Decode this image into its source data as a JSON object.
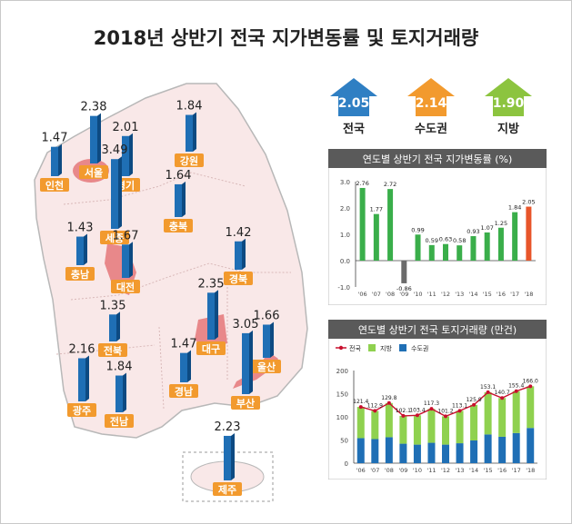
{
  "title": "2018년 상반기 전국 지가변동률 및 토지거래량",
  "summary": [
    {
      "value": "2.05",
      "label": "전국",
      "color": "#2f7fc3"
    },
    {
      "value": "2.14",
      "label": "수도권",
      "color": "#f29a2e"
    },
    {
      "value": "1.90",
      "label": "지방",
      "color": "#8cc43f"
    }
  ],
  "map": {
    "regions": [
      {
        "name": "서울",
        "value": "2.38",
        "highlight": true
      },
      {
        "name": "인천",
        "value": "1.47",
        "highlight": false
      },
      {
        "name": "경기",
        "value": "2.01",
        "highlight": false
      },
      {
        "name": "강원",
        "value": "1.84",
        "highlight": false
      },
      {
        "name": "세종",
        "value": "3.49",
        "highlight": true
      },
      {
        "name": "충북",
        "value": "1.64",
        "highlight": false
      },
      {
        "name": "충남",
        "value": "1.43",
        "highlight": false
      },
      {
        "name": "대전",
        "value": "1.67",
        "highlight": true
      },
      {
        "name": "경북",
        "value": "1.42",
        "highlight": false
      },
      {
        "name": "전북",
        "value": "1.35",
        "highlight": false
      },
      {
        "name": "대구",
        "value": "2.35",
        "highlight": true
      },
      {
        "name": "울산",
        "value": "1.66",
        "highlight": true
      },
      {
        "name": "광주",
        "value": "2.16",
        "highlight": false
      },
      {
        "name": "전남",
        "value": "1.84",
        "highlight": false
      },
      {
        "name": "경남",
        "value": "1.47",
        "highlight": false
      },
      {
        "name": "부산",
        "value": "3.05",
        "highlight": true
      },
      {
        "name": "제주",
        "value": "2.23",
        "highlight": false
      }
    ]
  },
  "chart_data": [
    {
      "type": "bar",
      "title": "연도별 상반기 전국 지가변동률 (%)",
      "categories": [
        "'06",
        "'07",
        "'08",
        "'09",
        "'10",
        "'11",
        "'12",
        "'13",
        "'14",
        "'15",
        "'16",
        "'17",
        "'18"
      ],
      "values": [
        2.76,
        1.77,
        2.72,
        -0.86,
        0.99,
        0.59,
        0.63,
        0.58,
        0.93,
        1.07,
        1.25,
        1.84,
        2.05
      ],
      "data_labels": [
        "2.76",
        "1.77",
        "2.72",
        "-0.86",
        "0.99",
        "0.59",
        "0.63",
        "0.58",
        "0.93",
        "1.07",
        "1.25",
        "1.84",
        "2.05"
      ],
      "colors": {
        "positive": "#3aae4a",
        "negative": "#6b6b6b",
        "latest": "#e8552a"
      },
      "ylim": [
        -1.0,
        3.0
      ],
      "yticks": [
        "3.0",
        "2.0",
        "1.0",
        "0.0",
        "-1.0"
      ]
    },
    {
      "type": "bar",
      "stacked": true,
      "title": "연도별 상반기 전국 토지거래량 (만건)",
      "categories": [
        "'06",
        "'07",
        "'08",
        "'09",
        "'10",
        "'11",
        "'12",
        "'13",
        "'14",
        "'15",
        "'16",
        "'17",
        "'18"
      ],
      "legend": [
        "전국",
        "지방",
        "수도권"
      ],
      "series": [
        {
          "name": "수도권",
          "color": "#1f6fb5",
          "values": [
            54,
            52,
            56,
            42,
            40,
            44,
            40,
            43,
            49,
            62,
            57,
            65,
            76
          ]
        },
        {
          "name": "지방",
          "color": "#8fd14f",
          "values": [
            67.4,
            60.9,
            73.8,
            60.1,
            63.4,
            73.3,
            61.2,
            70.1,
            76.9,
            91.1,
            83.7,
            90.4,
            90.0
          ]
        }
      ],
      "line": {
        "name": "전국",
        "color": "#c8102e",
        "values": [
          121.4,
          112.9,
          129.8,
          102.1,
          103.4,
          117.3,
          101.2,
          113.1,
          125.9,
          153.1,
          140.7,
          155.4,
          166.0
        ],
        "labels": [
          "121.4",
          "112.9",
          "129.8",
          "102.1",
          "103.4",
          "117.3",
          "101.2",
          "113.1",
          "125.9",
          "153.1",
          "140.7",
          "155.4",
          "166.0"
        ]
      },
      "ylim": [
        0,
        200
      ],
      "yticks": [
        "200",
        "150",
        "100",
        "50",
        "0"
      ]
    }
  ]
}
